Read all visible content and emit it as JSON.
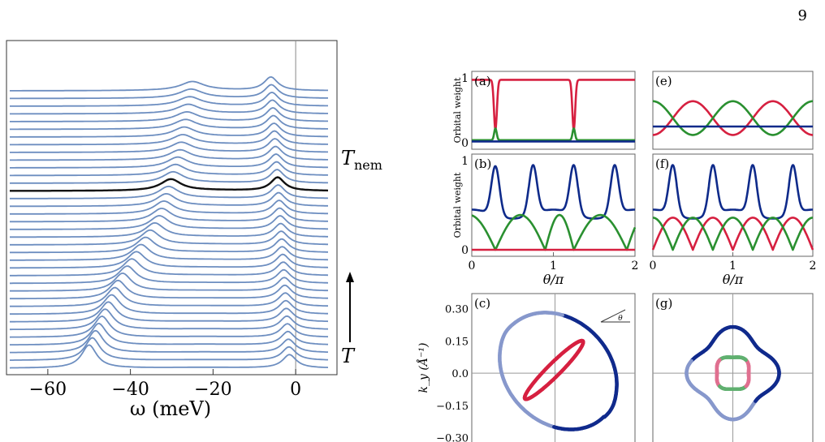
{
  "page_number": "9",
  "chart_data": [
    {
      "id": "waterfall",
      "type": "line",
      "xlabel": "ω (meV)",
      "xlim": [
        -70,
        10
      ],
      "xticks": [
        -60,
        -40,
        -20,
        0
      ],
      "xtick_labels": [
        "−60",
        "−40",
        "−20",
        "0"
      ],
      "vline_x": 0,
      "curve_count": 37,
      "highlighted_curve_index": 23,
      "line_color": "#6d8ec0",
      "highlight_color": "#111111",
      "annotations": {
        "tnem": "T",
        "tnem_sub": "nem",
        "t": "T"
      },
      "peak_trajectory": [
        {
          "x": -50,
          "height": 0.95
        },
        {
          "x": -43,
          "height": 0.75
        },
        {
          "x": -33,
          "height": 0.55
        },
        {
          "x": -28,
          "height": 0.4
        },
        {
          "x": -25,
          "height": 0.35
        }
      ],
      "second_peak": {
        "x_low": -1.5,
        "x_high": -6,
        "height": 0.55
      }
    },
    {
      "id": "a",
      "type": "line",
      "panel_label": "(a)",
      "ylabel": "Orbital weight",
      "ylim": [
        0,
        1
      ],
      "yticks": [
        0,
        1
      ],
      "ytick_labels": [
        "0",
        "1"
      ],
      "xlim": [
        0,
        2
      ],
      "series": [
        {
          "color": "#d62040",
          "model": "dips",
          "base": 0.97,
          "dip": 0.77,
          "centers": [
            0.29,
            1.25
          ]
        },
        {
          "color": "#2a9030",
          "model": "spikes",
          "base": 0.04,
          "spike": 0.18,
          "centers": [
            0.29,
            1.25
          ]
        },
        {
          "color": "#0e2a8a",
          "model": "flat",
          "value": 0.02
        }
      ]
    },
    {
      "id": "b",
      "type": "line",
      "panel_label": "(b)",
      "ylabel": "Orbital weight",
      "ylim": [
        0,
        1
      ],
      "yticks": [
        0,
        1
      ],
      "ytick_labels": [
        "0",
        "1"
      ],
      "xlim": [
        0,
        2
      ],
      "xticks": [
        0,
        1,
        2
      ],
      "xtick_labels": [
        "0",
        "1",
        "2"
      ],
      "xlabel": "θ/π",
      "series": [
        {
          "color": "#0e2a8a",
          "model": "peaks",
          "min": 0.4,
          "max": 0.95,
          "centers": [
            0.29,
            0.75,
            1.25,
            1.75
          ]
        },
        {
          "color": "#2a9030",
          "model": "arches",
          "max": 0.39,
          "zeros": [
            0.29,
            0.9,
            1.25,
            1.9
          ]
        },
        {
          "color": "#d62040",
          "model": "flat",
          "value": 0.0
        }
      ]
    },
    {
      "id": "e",
      "type": "line",
      "panel_label": "(e)",
      "ylim": [
        0,
        1
      ],
      "xlim": [
        0,
        2
      ],
      "series": [
        {
          "color": "#d62040",
          "model": "cos",
          "mid": 0.38,
          "amp": 0.26,
          "phase": 0.5
        },
        {
          "color": "#2a9030",
          "model": "cos",
          "mid": 0.38,
          "amp": 0.26,
          "phase": 0.0
        },
        {
          "color": "#0e2a8a",
          "model": "flat",
          "value": 0.25
        }
      ]
    },
    {
      "id": "f",
      "type": "line",
      "panel_label": "(f)",
      "ylim": [
        0,
        1
      ],
      "xlim": [
        0,
        2
      ],
      "xticks": [
        0,
        1,
        2
      ],
      "xtick_labels": [
        "0",
        "1",
        "2"
      ],
      "xlabel": "θ/π",
      "series": [
        {
          "color": "#0e2a8a",
          "model": "peaks",
          "min": 0.4,
          "max": 0.95,
          "centers": [
            0.25,
            0.75,
            1.25,
            1.75
          ]
        },
        {
          "color": "#d62040",
          "model": "abscos",
          "max": 0.36,
          "shift": 0.0
        },
        {
          "color": "#2a9030",
          "model": "abscos",
          "max": 0.36,
          "shift": 0.25
        }
      ]
    },
    {
      "id": "c",
      "type": "scatter",
      "panel_label": "(c)",
      "ylabel": "k_y (Å⁻¹)",
      "ylim": [
        -0.32,
        0.37
      ],
      "yticks": [
        0.3,
        0.15,
        0.0,
        -0.15,
        -0.3
      ],
      "ytick_labels": [
        "0.30",
        "0.15",
        "0.0",
        "−0.15",
        "−0.30"
      ],
      "inset_label": "θ",
      "outer_contour": {
        "color_dark": "#102a8c",
        "color_light": "#8798cc",
        "semi_major": 0.3,
        "semi_minor": 0.24,
        "tilt_deg": -45
      },
      "inner_contour": {
        "color": "#d62040",
        "half_length": 0.19,
        "half_width": 0.03,
        "tilt_deg": 45
      }
    },
    {
      "id": "g",
      "type": "scatter",
      "panel_label": "(g)",
      "ylim": [
        -0.32,
        0.37
      ],
      "outer_contour": {
        "color_dark": "#102a8c",
        "color_light": "#8798cc",
        "radius": 0.19,
        "lobe": 0.025
      },
      "inner_contour": {
        "color_a": "#d62040",
        "color_b": "#2a9030",
        "radius": 0.08
      }
    }
  ]
}
